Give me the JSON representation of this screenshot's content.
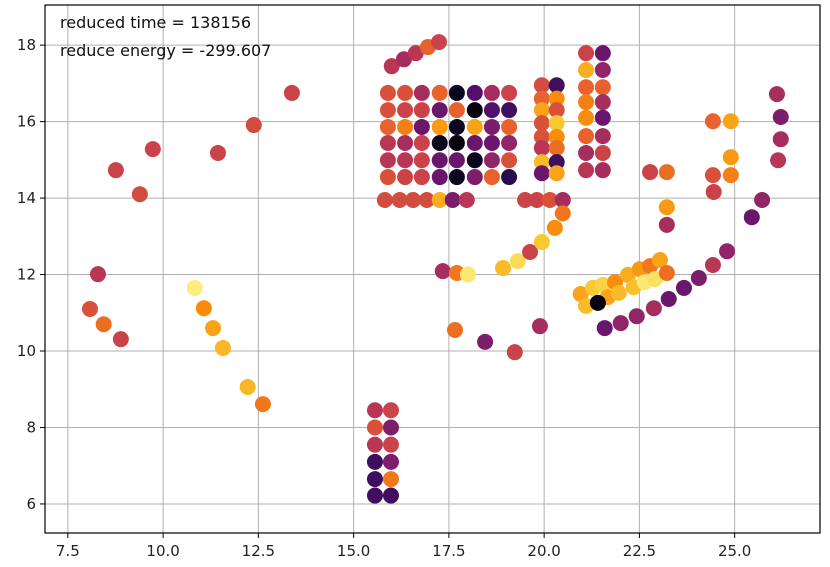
{
  "chart_data": {
    "type": "scatter",
    "title": "",
    "xlabel": "",
    "ylabel": "",
    "xlim": [
      6.9,
      27.24
    ],
    "ylim": [
      5.24,
      19.05
    ],
    "grid": true,
    "colormap": "inferno",
    "xticks": [
      "7.5",
      "10.0",
      "12.5",
      "15.0",
      "17.5",
      "20.0",
      "22.5",
      "25.0"
    ],
    "xtick_values": [
      7.5,
      10,
      12.5,
      15,
      17.5,
      20,
      22.5,
      25
    ],
    "yticks": [
      "6",
      "8",
      "10",
      "12",
      "14",
      "16",
      "18"
    ],
    "ytick_values": [
      6,
      8,
      10,
      12,
      14,
      16,
      18
    ],
    "annotations": [
      "reduced time = 138156",
      "reduce energy = -299.607"
    ],
    "point_format": [
      "x",
      "y",
      "color_value_0_to_1"
    ],
    "points": [
      [
        8.76,
        14.73,
        0.55
      ],
      [
        9.73,
        15.28,
        0.55
      ],
      [
        9.39,
        14.1,
        0.58
      ],
      [
        11.44,
        15.18,
        0.55
      ],
      [
        12.38,
        15.91,
        0.58
      ],
      [
        13.38,
        16.75,
        0.55
      ],
      [
        8.29,
        12.01,
        0.5
      ],
      [
        8.08,
        11.1,
        0.6
      ],
      [
        8.44,
        10.7,
        0.68
      ],
      [
        8.89,
        10.31,
        0.55
      ],
      [
        10.83,
        11.65,
        0.96
      ],
      [
        11.07,
        11.12,
        0.75
      ],
      [
        11.31,
        10.6,
        0.8
      ],
      [
        11.57,
        10.08,
        0.84
      ],
      [
        12.22,
        9.06,
        0.84
      ],
      [
        12.62,
        8.61,
        0.7
      ],
      [
        15.56,
        8.45,
        0.5
      ],
      [
        15.56,
        8.0,
        0.6
      ],
      [
        15.56,
        7.55,
        0.5
      ],
      [
        15.56,
        7.1,
        0.2
      ],
      [
        15.56,
        6.65,
        0.2
      ],
      [
        15.56,
        6.22,
        0.2
      ],
      [
        15.98,
        8.45,
        0.55
      ],
      [
        15.98,
        8.0,
        0.35
      ],
      [
        15.98,
        7.55,
        0.55
      ],
      [
        15.98,
        7.1,
        0.35
      ],
      [
        15.98,
        6.65,
        0.7
      ],
      [
        15.98,
        6.22,
        0.2
      ],
      [
        16.0,
        17.45,
        0.5
      ],
      [
        16.32,
        17.63,
        0.45
      ],
      [
        16.63,
        17.79,
        0.5
      ],
      [
        16.95,
        17.95,
        0.65
      ],
      [
        17.24,
        18.08,
        0.55
      ],
      [
        15.9,
        16.75,
        0.6
      ],
      [
        16.35,
        16.75,
        0.6
      ],
      [
        16.79,
        16.75,
        0.45
      ],
      [
        17.26,
        16.75,
        0.65
      ],
      [
        17.71,
        16.75,
        0.05
      ],
      [
        18.18,
        16.75,
        0.25
      ],
      [
        18.63,
        16.75,
        0.45
      ],
      [
        19.08,
        16.75,
        0.55
      ],
      [
        15.9,
        16.3,
        0.6
      ],
      [
        16.35,
        16.3,
        0.55
      ],
      [
        16.79,
        16.3,
        0.55
      ],
      [
        17.26,
        16.3,
        0.3
      ],
      [
        17.71,
        16.3,
        0.65
      ],
      [
        18.18,
        16.3,
        0.02
      ],
      [
        18.63,
        16.3,
        0.25
      ],
      [
        19.08,
        16.3,
        0.2
      ],
      [
        15.9,
        15.86,
        0.65
      ],
      [
        16.35,
        15.86,
        0.72
      ],
      [
        16.79,
        15.86,
        0.3
      ],
      [
        17.26,
        15.86,
        0.78
      ],
      [
        17.71,
        15.86,
        0.05
      ],
      [
        18.18,
        15.86,
        0.8
      ],
      [
        18.63,
        15.86,
        0.35
      ],
      [
        19.08,
        15.86,
        0.65
      ],
      [
        15.9,
        15.44,
        0.5
      ],
      [
        16.35,
        15.44,
        0.45
      ],
      [
        16.79,
        15.44,
        0.55
      ],
      [
        17.26,
        15.44,
        0.05
      ],
      [
        17.71,
        15.44,
        0.02
      ],
      [
        18.18,
        15.44,
        0.3
      ],
      [
        18.63,
        15.44,
        0.3
      ],
      [
        19.08,
        15.44,
        0.4
      ],
      [
        15.9,
        14.99,
        0.5
      ],
      [
        16.35,
        14.99,
        0.5
      ],
      [
        16.79,
        14.99,
        0.55
      ],
      [
        17.26,
        14.99,
        0.3
      ],
      [
        17.71,
        14.99,
        0.3
      ],
      [
        18.18,
        14.99,
        0.05
      ],
      [
        18.63,
        14.99,
        0.4
      ],
      [
        19.08,
        14.99,
        0.6
      ],
      [
        15.9,
        14.55,
        0.6
      ],
      [
        16.35,
        14.55,
        0.55
      ],
      [
        16.79,
        14.55,
        0.55
      ],
      [
        17.26,
        14.55,
        0.3
      ],
      [
        17.71,
        14.55,
        0.05
      ],
      [
        18.18,
        14.55,
        0.35
      ],
      [
        18.63,
        14.55,
        0.65
      ],
      [
        19.08,
        14.55,
        0.15
      ],
      [
        15.82,
        13.95,
        0.58
      ],
      [
        16.21,
        13.95,
        0.58
      ],
      [
        16.56,
        13.95,
        0.58
      ],
      [
        16.92,
        13.95,
        0.58
      ],
      [
        17.26,
        13.95,
        0.82
      ],
      [
        17.6,
        13.95,
        0.35
      ],
      [
        17.97,
        13.95,
        0.5
      ],
      [
        19.94,
        16.95,
        0.58
      ],
      [
        19.94,
        16.6,
        0.65
      ],
      [
        19.94,
        16.3,
        0.8
      ],
      [
        19.94,
        15.96,
        0.6
      ],
      [
        19.94,
        15.6,
        0.6
      ],
      [
        19.94,
        15.31,
        0.5
      ],
      [
        19.94,
        14.94,
        0.85
      ],
      [
        19.94,
        14.65,
        0.3
      ],
      [
        20.33,
        16.95,
        0.2
      ],
      [
        20.33,
        16.6,
        0.75
      ],
      [
        20.33,
        16.3,
        0.6
      ],
      [
        20.33,
        15.96,
        0.88
      ],
      [
        20.33,
        15.6,
        0.75
      ],
      [
        20.33,
        15.31,
        0.68
      ],
      [
        20.33,
        14.94,
        0.2
      ],
      [
        20.33,
        14.65,
        0.8
      ],
      [
        19.5,
        13.95,
        0.55
      ],
      [
        19.81,
        13.95,
        0.55
      ],
      [
        20.15,
        13.95,
        0.6
      ],
      [
        20.49,
        13.95,
        0.45
      ],
      [
        20.49,
        13.6,
        0.7
      ],
      [
        21.1,
        17.79,
        0.55
      ],
      [
        21.1,
        17.35,
        0.82
      ],
      [
        21.1,
        16.9,
        0.65
      ],
      [
        21.1,
        16.51,
        0.72
      ],
      [
        21.1,
        16.1,
        0.75
      ],
      [
        21.1,
        15.62,
        0.65
      ],
      [
        21.1,
        15.18,
        0.45
      ],
      [
        21.1,
        14.73,
        0.5
      ],
      [
        21.54,
        17.79,
        0.3
      ],
      [
        21.54,
        17.35,
        0.4
      ],
      [
        21.54,
        16.9,
        0.65
      ],
      [
        21.54,
        16.51,
        0.45
      ],
      [
        21.54,
        16.1,
        0.3
      ],
      [
        21.54,
        15.62,
        0.45
      ],
      [
        21.54,
        15.18,
        0.55
      ],
      [
        21.54,
        14.73,
        0.45
      ],
      [
        17.34,
        12.09,
        0.45
      ],
      [
        17.71,
        12.04,
        0.7
      ],
      [
        18.0,
        12.0,
        0.95
      ],
      [
        18.92,
        12.17,
        0.85
      ],
      [
        19.31,
        12.35,
        0.92
      ],
      [
        19.63,
        12.59,
        0.55
      ],
      [
        19.94,
        12.85,
        0.88
      ],
      [
        20.28,
        13.22,
        0.75
      ],
      [
        22.78,
        14.68,
        0.55
      ],
      [
        23.22,
        14.68,
        0.68
      ],
      [
        24.43,
        14.6,
        0.6
      ],
      [
        24.9,
        14.6,
        0.72
      ],
      [
        24.45,
        14.16,
        0.55
      ],
      [
        23.22,
        13.76,
        0.78
      ],
      [
        23.22,
        13.3,
        0.45
      ],
      [
        25.72,
        13.95,
        0.4
      ],
      [
        25.45,
        13.5,
        0.3
      ],
      [
        24.43,
        16.01,
        0.65
      ],
      [
        24.9,
        16.01,
        0.8
      ],
      [
        24.9,
        15.07,
        0.78
      ],
      [
        26.11,
        16.72,
        0.45
      ],
      [
        26.21,
        16.12,
        0.35
      ],
      [
        26.21,
        15.54,
        0.45
      ],
      [
        26.14,
        14.99,
        0.5
      ],
      [
        21.59,
        10.6,
        0.3
      ],
      [
        22.01,
        10.73,
        0.4
      ],
      [
        22.43,
        10.91,
        0.4
      ],
      [
        22.88,
        11.12,
        0.45
      ],
      [
        23.27,
        11.36,
        0.3
      ],
      [
        23.67,
        11.65,
        0.3
      ],
      [
        24.06,
        11.91,
        0.35
      ],
      [
        24.43,
        12.25,
        0.5
      ],
      [
        24.8,
        12.61,
        0.4
      ],
      [
        20.96,
        11.49,
        0.8
      ],
      [
        21.1,
        11.18,
        0.85
      ],
      [
        21.28,
        11.65,
        0.88
      ],
      [
        21.54,
        11.73,
        0.9
      ],
      [
        21.67,
        11.41,
        0.8
      ],
      [
        21.86,
        11.8,
        0.75
      ],
      [
        21.96,
        11.52,
        0.85
      ],
      [
        22.2,
        11.99,
        0.82
      ],
      [
        22.35,
        11.67,
        0.86
      ],
      [
        22.51,
        12.14,
        0.78
      ],
      [
        22.64,
        11.8,
        0.95
      ],
      [
        22.78,
        12.22,
        0.7
      ],
      [
        22.91,
        11.88,
        0.93
      ],
      [
        23.04,
        12.38,
        0.8
      ],
      [
        23.22,
        12.04,
        0.68
      ],
      [
        21.41,
        11.26,
        0.02
      ],
      [
        17.66,
        10.55,
        0.68
      ],
      [
        18.45,
        10.24,
        0.35
      ],
      [
        19.23,
        9.97,
        0.55
      ],
      [
        19.89,
        10.65,
        0.45
      ]
    ]
  }
}
